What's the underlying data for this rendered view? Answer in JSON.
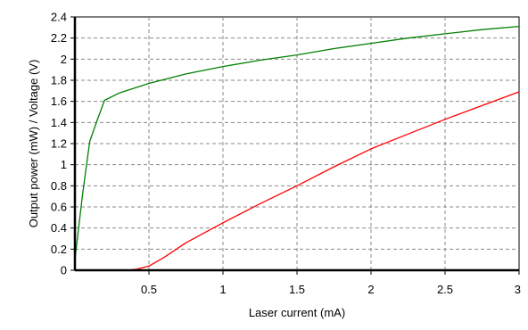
{
  "chart_data": {
    "type": "line",
    "title": "",
    "xlabel": "Laser current (mA)",
    "ylabel": "Output power (mW) / Voltage (V)",
    "xlim": [
      0,
      3
    ],
    "ylim": [
      0,
      2.4
    ],
    "xticks": [
      0.5,
      1,
      1.5,
      2,
      2.5,
      3
    ],
    "xtick_labels": [
      "0.5",
      "1",
      "1.5",
      "2",
      "2.5",
      "3"
    ],
    "yticks": [
      0,
      0.2,
      0.4,
      0.6,
      0.8,
      1,
      1.2,
      1.4,
      1.6,
      1.8,
      2,
      2.2,
      2.4
    ],
    "ytick_labels": [
      "0",
      "0.2",
      "0.4",
      "0.6",
      "0.8",
      "1",
      "1.2",
      "1.4",
      "1.6",
      "1.8",
      "2",
      "2.2",
      "2.4"
    ],
    "grid": true,
    "legend": "none",
    "series": [
      {
        "color": "#008000",
        "x": [
          0.0,
          0.05,
          0.1,
          0.15,
          0.2,
          0.3,
          0.5,
          0.75,
          1.0,
          1.25,
          1.5,
          1.75,
          2.0,
          2.25,
          2.5,
          2.75,
          3.0
        ],
        "y": [
          0.1,
          0.7,
          1.22,
          1.42,
          1.61,
          1.68,
          1.77,
          1.86,
          1.93,
          1.99,
          2.04,
          2.1,
          2.15,
          2.2,
          2.24,
          2.28,
          2.31
        ]
      },
      {
        "color": "#ff0000",
        "x": [
          0.25,
          0.35,
          0.42,
          0.5,
          0.6,
          0.75,
          1.0,
          1.25,
          1.5,
          1.75,
          2.0,
          2.25,
          2.5,
          2.75,
          3.0
        ],
        "y": [
          0.0,
          0.0,
          0.01,
          0.04,
          0.12,
          0.26,
          0.45,
          0.63,
          0.8,
          0.98,
          1.15,
          1.29,
          1.43,
          1.56,
          1.69
        ]
      }
    ]
  }
}
